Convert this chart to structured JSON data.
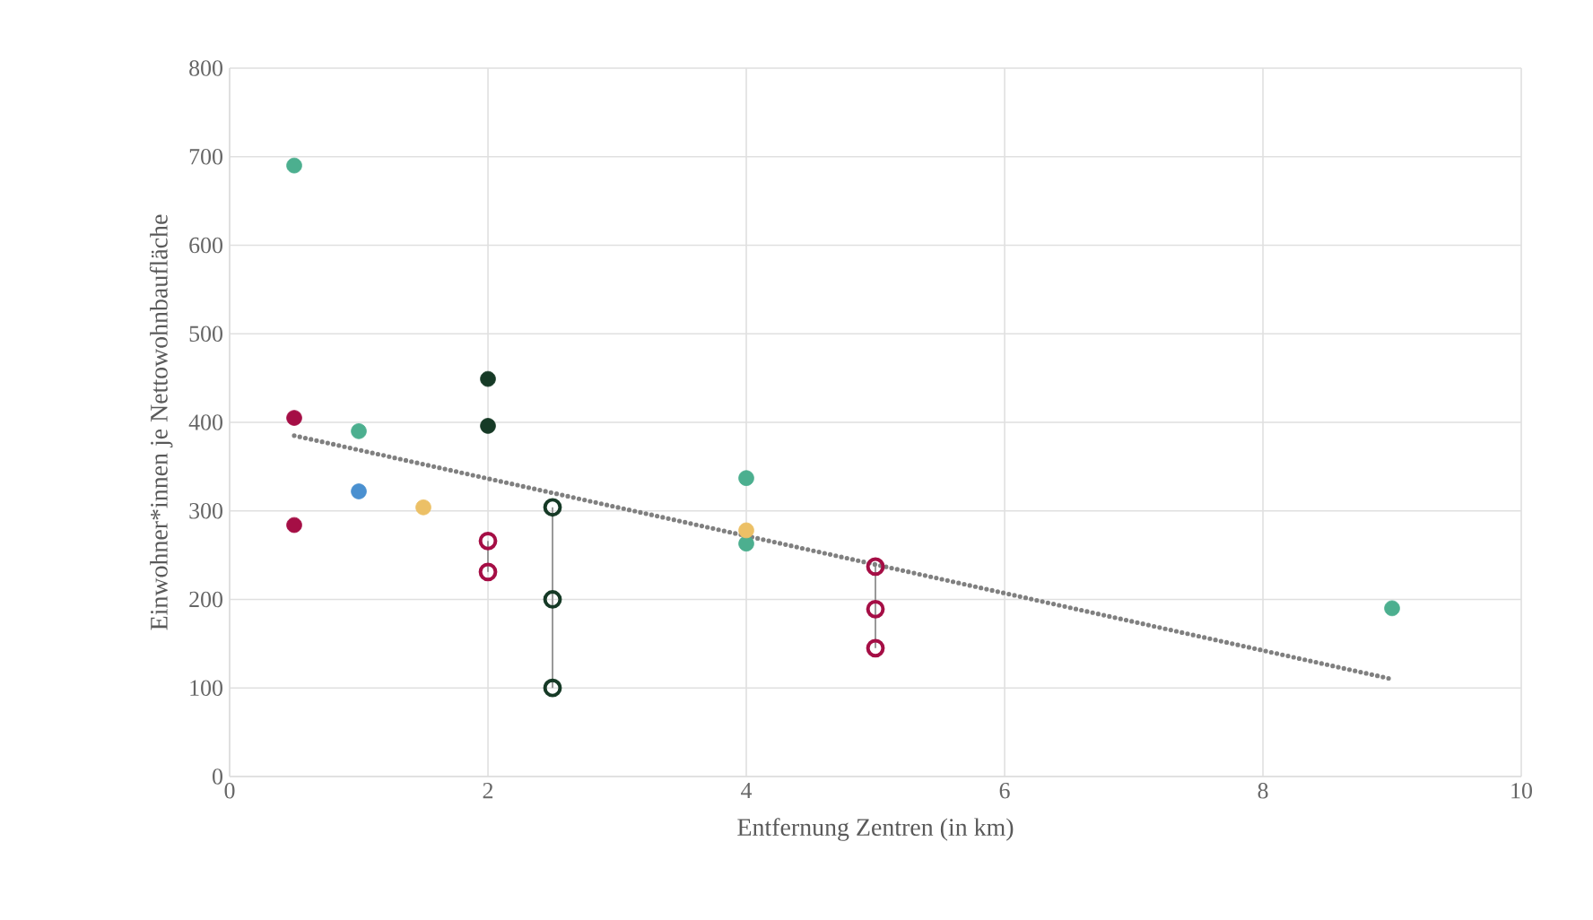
{
  "chart_data": {
    "type": "scatter",
    "xlabel": "Entfernung Zentren (in km)",
    "ylabel": "Einwohner*innen je Nettowohnbaufläche",
    "xlim": [
      0,
      10
    ],
    "xticks": [
      0,
      2,
      4,
      6,
      8,
      10
    ],
    "ylim": [
      0,
      800
    ],
    "yticks": [
      0,
      100,
      200,
      300,
      400,
      500,
      600,
      700,
      800
    ],
    "grid": true,
    "marker": "circle",
    "series": [
      {
        "color": "#4caf8f",
        "x": [
          0.5,
          1,
          4,
          4,
          9
        ],
        "values": [
          690,
          390,
          337,
          263,
          190
        ]
      },
      {
        "color": "#a50e45",
        "x": [
          0.5,
          0.5
        ],
        "values": [
          405,
          284
        ]
      },
      {
        "color": "#4a90d0",
        "x": [
          1
        ],
        "values": [
          322
        ]
      },
      {
        "color": "#ecc066",
        "x": [
          1.5,
          4
        ],
        "values": [
          304,
          278
        ]
      },
      {
        "color": "#163a26",
        "x": [
          2,
          2
        ],
        "values": [
          449,
          396
        ]
      },
      {
        "type": "line",
        "color": "#a50e45",
        "x": [
          2,
          2
        ],
        "values": [
          266,
          231
        ]
      },
      {
        "type": "line",
        "color": "#163a26",
        "x": [
          2.5,
          2.5,
          2.5
        ],
        "values": [
          304,
          200,
          100
        ]
      },
      {
        "type": "line",
        "color": "#a50e45",
        "x": [
          5,
          5,
          5
        ],
        "values": [
          237,
          189,
          145
        ]
      },
      {
        "type": "line",
        "color": "#808080",
        "marker": "none",
        "line_style": "dotted",
        "x": [
          0.5,
          9
        ],
        "values": [
          385,
          110
        ]
      }
    ]
  }
}
